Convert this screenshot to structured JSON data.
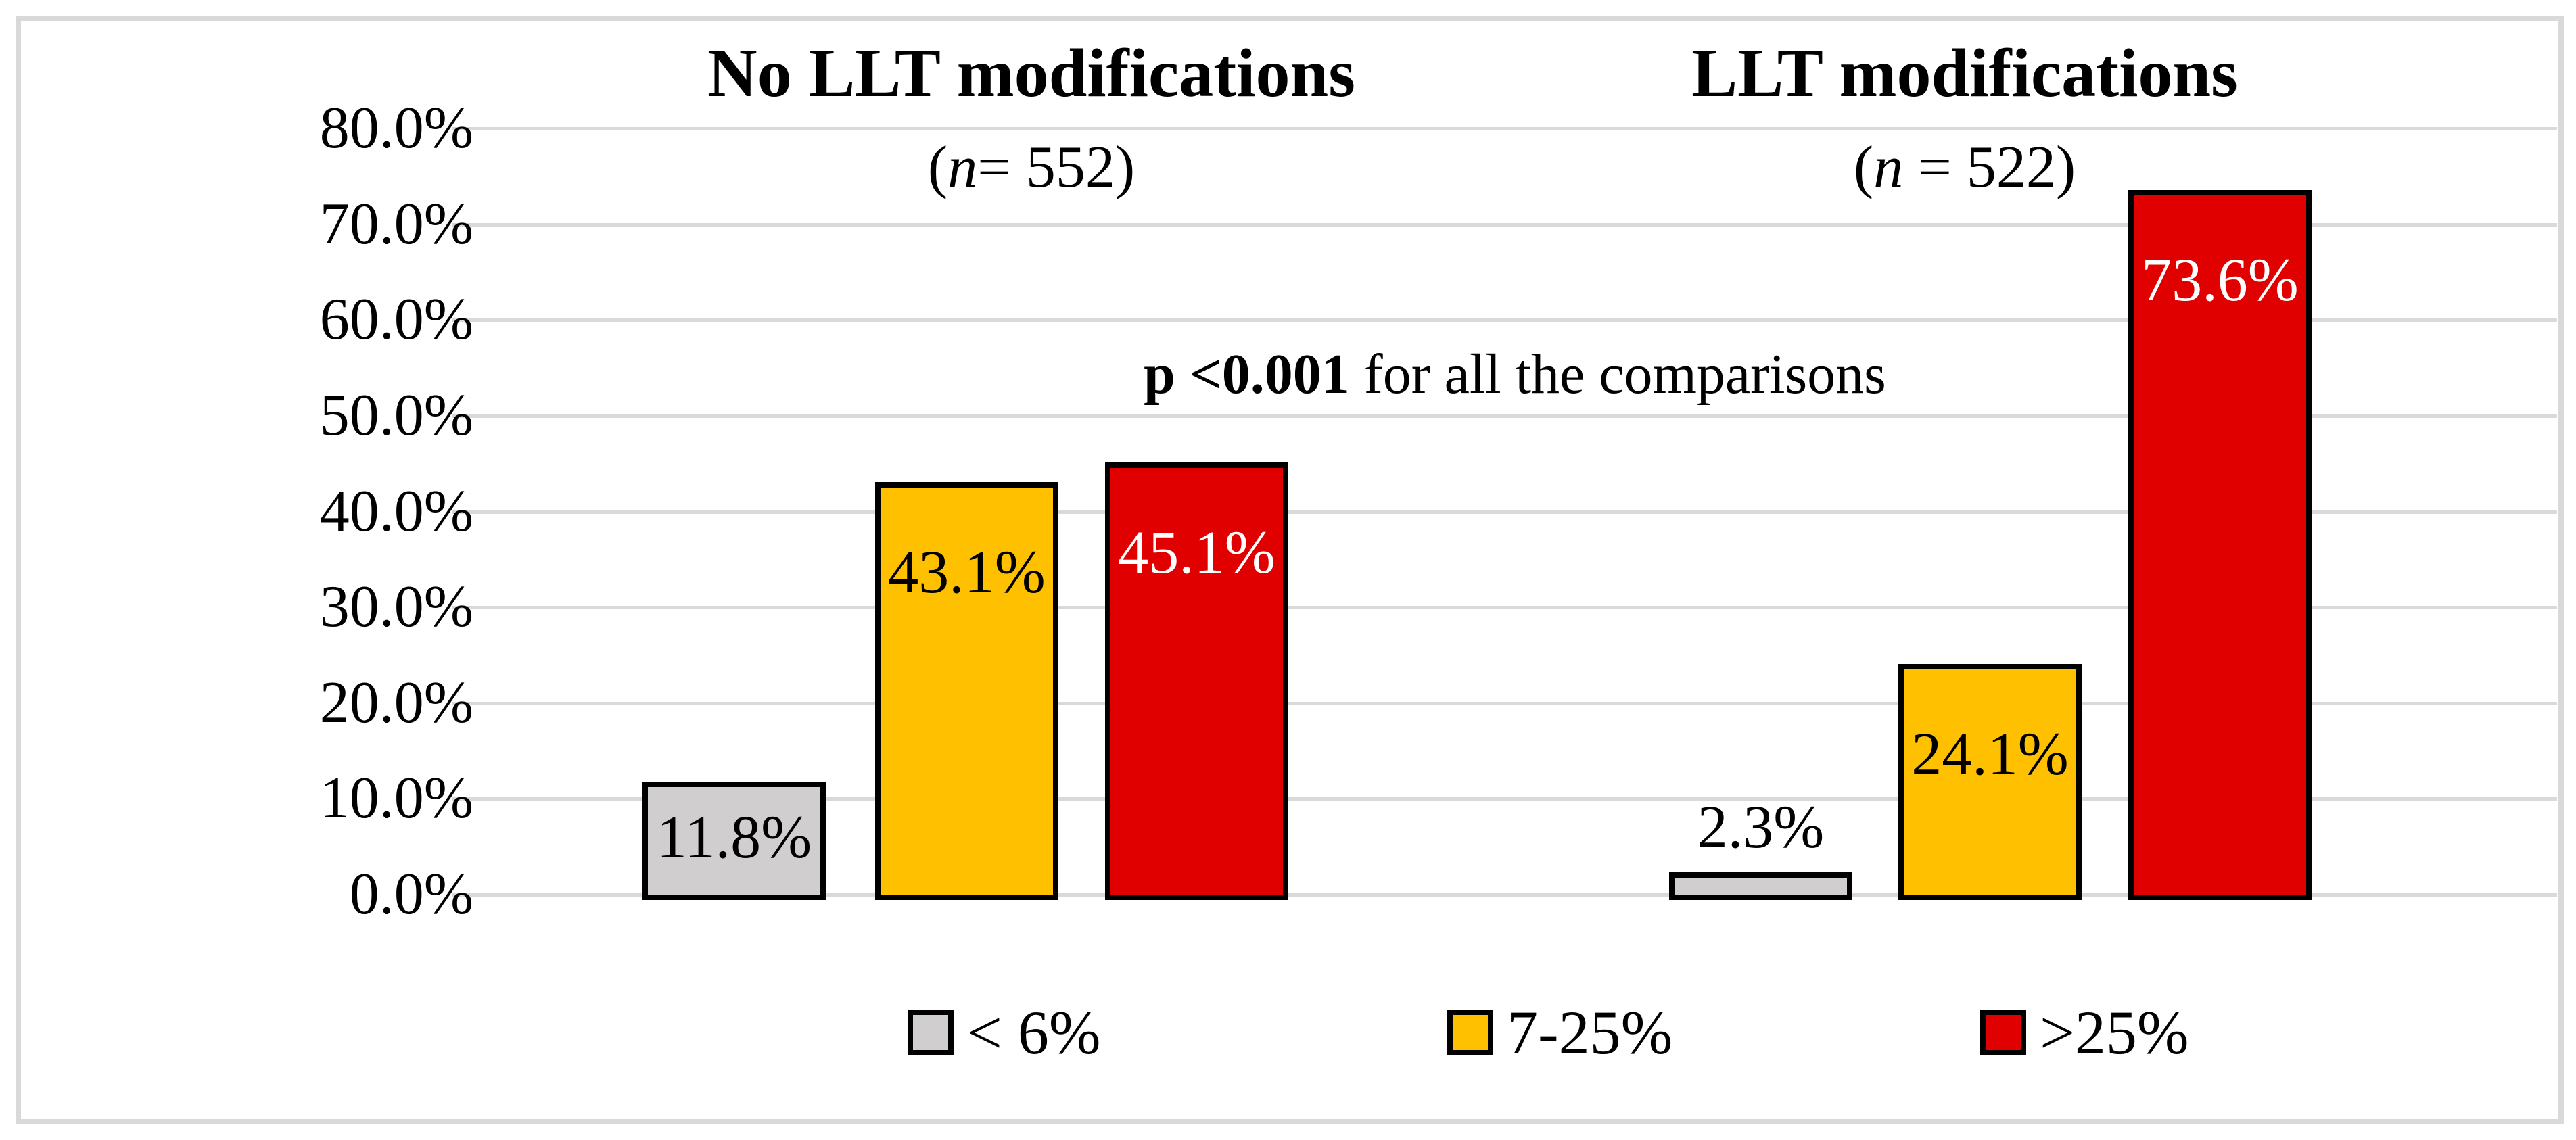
{
  "chart_data": {
    "type": "bar",
    "background_color": "#FFFFFF",
    "grid_color": "#D9D9D9",
    "bar_border_color": "#000000",
    "groups": [
      {
        "title": "No LLT modifications",
        "subtitle_parts": {
          "pre": "(",
          "italic": "n",
          "post": "= 552)"
        },
        "values": [
          11.8,
          43.1,
          45.1
        ],
        "value_labels": [
          "11.8%",
          "43.1%",
          "45.1%"
        ]
      },
      {
        "title": "LLT modifications",
        "subtitle_parts": {
          "pre": "(",
          "italic": "n",
          "post": " = 522)"
        },
        "values": [
          2.3,
          24.1,
          73.6
        ],
        "value_labels": [
          "2.3%",
          "24.1%",
          "73.6%"
        ]
      }
    ],
    "series": [
      {
        "name": "< 6%",
        "color": "#D0CECE",
        "value_label_color": "#000000"
      },
      {
        "name": "7-25%",
        "color": "#FFC000",
        "value_label_color": "#000000"
      },
      {
        "name": ">25%",
        "color": "#E00000",
        "value_label_color": "#FFFFFF"
      }
    ],
    "y_axis": {
      "min": 0,
      "max": 80,
      "step": 10,
      "grid": true,
      "tick_labels": [
        "0.0%",
        "10.0%",
        "20.0%",
        "30.0%",
        "40.0%",
        "50.0%",
        "60.0%",
        "70.0%",
        "80.0%"
      ]
    },
    "annotation": {
      "bold_text": "p <0.001",
      "regular_text": " for all the comparisons"
    },
    "legend": {
      "position": "bottom",
      "items": [
        "< 6%",
        "7-25%",
        ">25%"
      ]
    }
  }
}
